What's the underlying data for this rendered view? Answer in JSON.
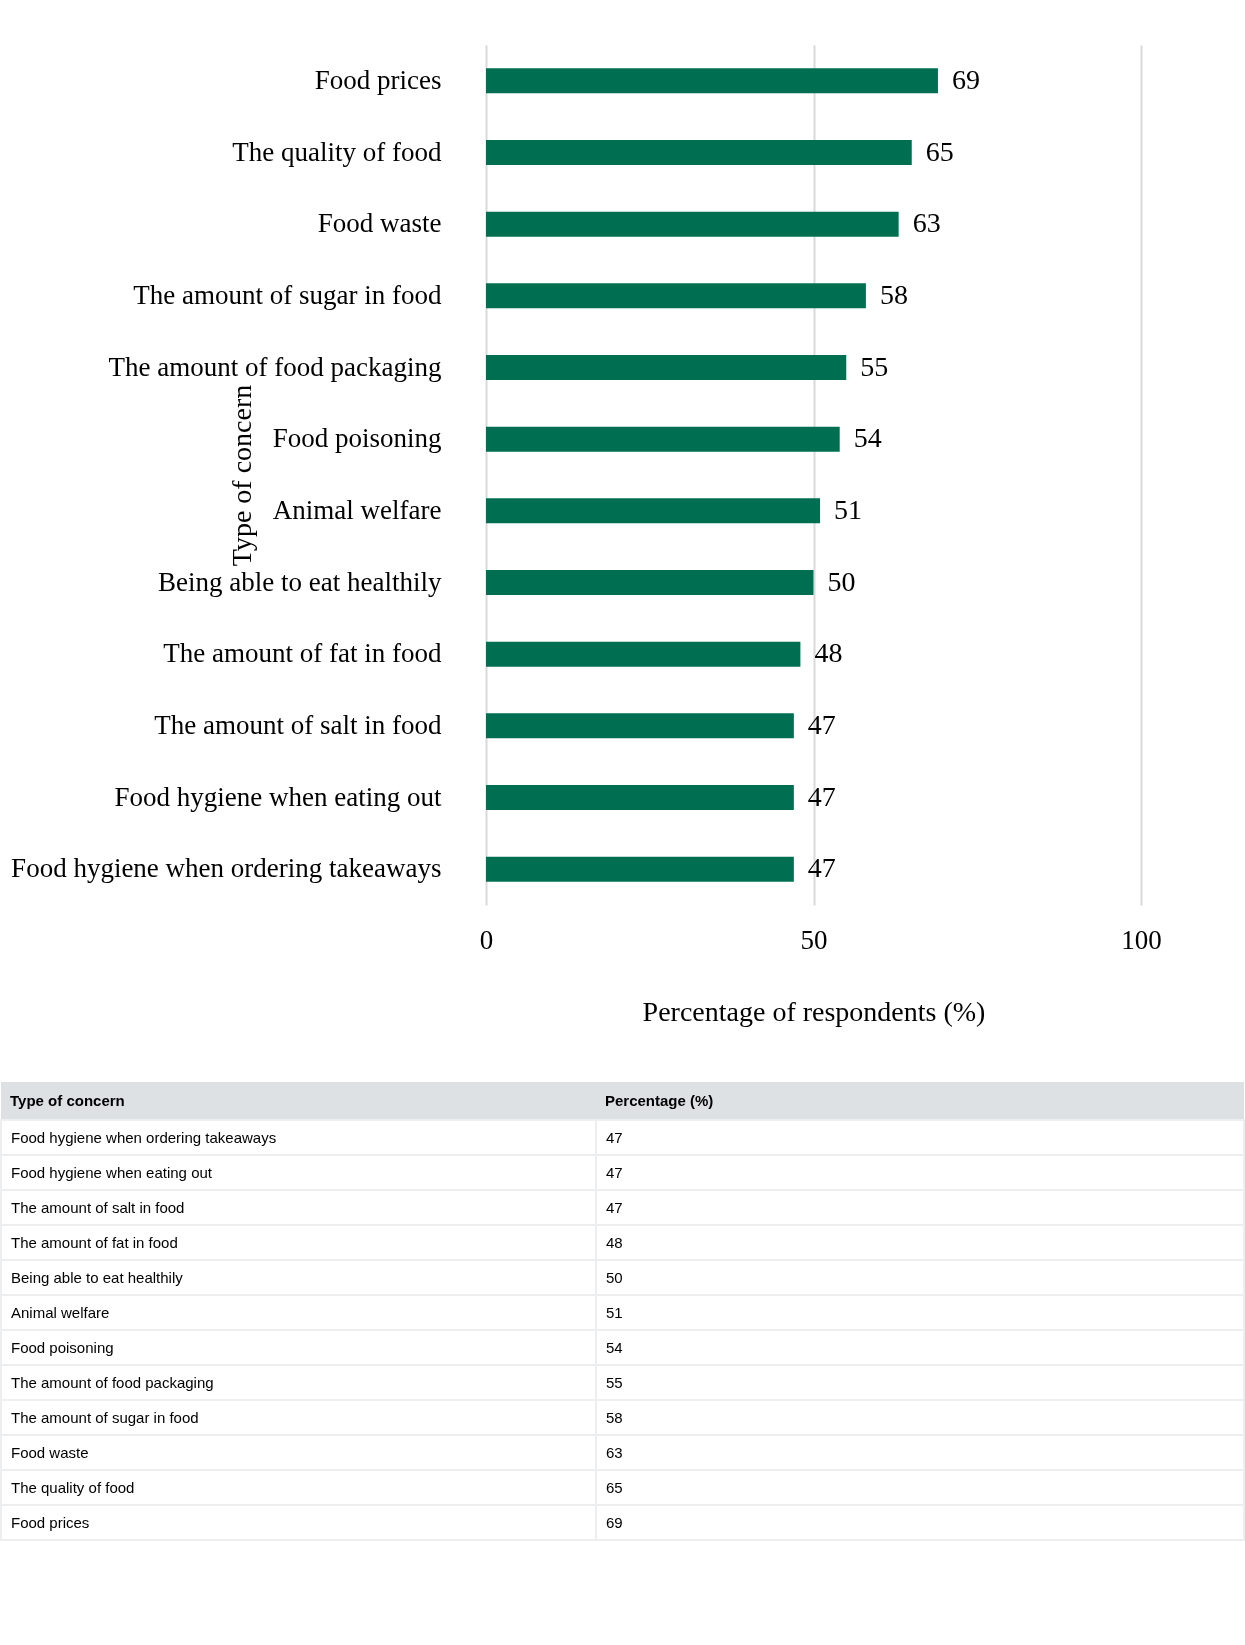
{
  "chart_data": [
    {
      "type": "bar",
      "orientation": "horizontal",
      "xlabel": "Percentage of respondents (%)",
      "ylabel": "Type of concern",
      "categories": [
        "Food prices",
        "The quality of food",
        "Food waste",
        "The amount of sugar in food",
        "The amount of food packaging",
        "Food poisoning",
        "Animal welfare",
        "Being able to eat healthily",
        "The amount of fat in food",
        "The amount of salt in food",
        "Food hygiene when eating out",
        "Food hygiene when ordering takeaways"
      ],
      "values": [
        69,
        65,
        63,
        58,
        55,
        54,
        51,
        50,
        48,
        47,
        47,
        47
      ],
      "color": "#006f51",
      "xlim": [
        0,
        100
      ],
      "xticks": [
        0,
        50,
        100
      ],
      "grid": "x",
      "data_labels": true
    },
    {
      "type": "other",
      "annotations": [
        "Type of concern",
        "Percentage (%)"
      ],
      "categories": [
        "Food hygiene when ordering takeaways",
        "Food hygiene when eating out",
        "The amount of salt in food",
        "The amount of fat in food",
        "Being able to eat healthily",
        "Animal welfare",
        "Food poisoning",
        "The amount of food packaging",
        "The amount of sugar in food",
        "Food waste",
        "The quality of food",
        "Food prices"
      ],
      "values": [
        47,
        47,
        47,
        48,
        50,
        51,
        54,
        55,
        58,
        63,
        65,
        69
      ],
      "data_labels": true
    }
  ]
}
